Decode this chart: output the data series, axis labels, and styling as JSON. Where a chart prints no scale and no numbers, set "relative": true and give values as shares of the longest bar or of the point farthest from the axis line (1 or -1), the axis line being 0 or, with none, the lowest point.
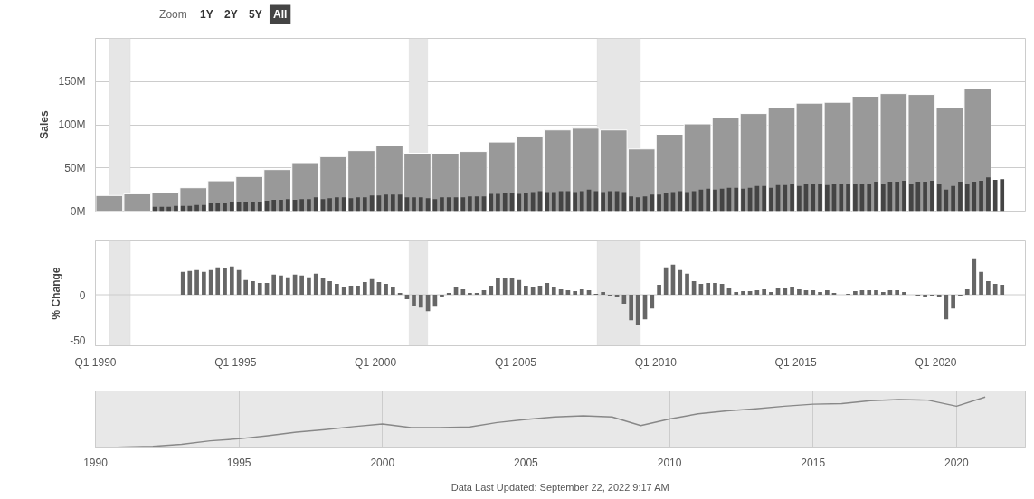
{
  "chart_data": [
    {
      "type": "bar",
      "ylabel": "Sales",
      "annotations": [
        "Zoom",
        "1Y",
        "2Y",
        "5Y",
        "All"
      ],
      "xlim": [
        "1990-01-01",
        "2023-03-15"
      ],
      "ylim": [
        0,
        200
      ],
      "yticks": [
        {
          "value": 0,
          "label": "0M"
        },
        {
          "value": 50,
          "label": "50M"
        },
        {
          "value": 100,
          "label": "100M"
        },
        {
          "value": 150,
          "label": "150M"
        }
      ],
      "grid": "y",
      "tick_labels": "y",
      "bands": [
        {
          "axis": "x",
          "from": "1990-07-01",
          "to": "1991-04-01",
          "color": "#e6e6e6"
        },
        {
          "axis": "x",
          "from": "2001-03-15",
          "to": "2001-11-10",
          "color": "#e6e6e6"
        },
        {
          "axis": "x",
          "from": "2007-12-01",
          "to": "2009-06-15",
          "color": "#e6e6e6"
        }
      ],
      "series": [
        {
          "color": "#999999",
          "x": [
            "1990-07-01",
            "1991-07-01",
            "1992-07-01",
            "1993-07-01",
            "1994-07-01",
            "1995-07-01",
            "1996-07-01",
            "1997-07-01",
            "1998-07-01",
            "1999-07-01",
            "2000-07-01",
            "2001-07-01",
            "2002-07-01",
            "2003-07-01",
            "2004-07-01",
            "2005-07-01",
            "2006-07-01",
            "2007-07-01",
            "2008-07-01",
            "2009-07-01",
            "2010-07-01",
            "2011-07-01",
            "2012-07-01",
            "2013-07-01",
            "2014-07-01",
            "2015-07-01",
            "2016-07-01",
            "2017-07-01",
            "2018-07-01",
            "2019-07-01",
            "2020-07-01",
            "2021-07-01"
          ],
          "values": [
            18,
            20,
            22,
            27,
            35,
            40,
            48,
            56,
            63,
            70,
            76,
            67,
            67,
            69,
            80,
            87,
            94,
            96,
            94,
            72,
            89,
            101,
            108,
            113,
            120,
            125,
            126,
            133,
            136,
            135,
            120,
            142
          ]
        },
        {
          "color": "#444444",
          "x": [
            "1992-02-15",
            "1992-05-15",
            "1992-08-15",
            "1992-11-15",
            "1993-02-15",
            "1993-05-15",
            "1993-08-15",
            "1993-11-15",
            "1994-02-15",
            "1994-05-15",
            "1994-08-15",
            "1994-11-15",
            "1995-02-15",
            "1995-05-15",
            "1995-08-15",
            "1995-11-15",
            "1996-02-15",
            "1996-05-15",
            "1996-08-15",
            "1996-11-15",
            "1997-02-15",
            "1997-05-15",
            "1997-08-15",
            "1997-11-15",
            "1998-02-15",
            "1998-05-15",
            "1998-08-15",
            "1998-11-15",
            "1999-02-15",
            "1999-05-15",
            "1999-08-15",
            "1999-11-15",
            "2000-02-15",
            "2000-05-15",
            "2000-08-15",
            "2000-11-15",
            "2001-02-15",
            "2001-05-15",
            "2001-08-15",
            "2001-11-15",
            "2002-02-15",
            "2002-05-15",
            "2002-08-15",
            "2002-11-15",
            "2003-02-15",
            "2003-05-15",
            "2003-08-15",
            "2003-11-15",
            "2004-02-15",
            "2004-05-15",
            "2004-08-15",
            "2004-11-15",
            "2005-02-15",
            "2005-05-15",
            "2005-08-15",
            "2005-11-15",
            "2006-02-15",
            "2006-05-15",
            "2006-08-15",
            "2006-11-15",
            "2007-02-15",
            "2007-05-15",
            "2007-08-15",
            "2007-11-15",
            "2008-02-15",
            "2008-05-15",
            "2008-08-15",
            "2008-11-15",
            "2009-02-15",
            "2009-05-15",
            "2009-08-15",
            "2009-11-15",
            "2010-02-15",
            "2010-05-15",
            "2010-08-15",
            "2010-11-15",
            "2011-02-15",
            "2011-05-15",
            "2011-08-15",
            "2011-11-15",
            "2012-02-15",
            "2012-05-15",
            "2012-08-15",
            "2012-11-15",
            "2013-02-15",
            "2013-05-15",
            "2013-08-15",
            "2013-11-15",
            "2014-02-15",
            "2014-05-15",
            "2014-08-15",
            "2014-11-15",
            "2015-02-15",
            "2015-05-15",
            "2015-08-15",
            "2015-11-15",
            "2016-02-15",
            "2016-05-15",
            "2016-08-15",
            "2016-11-15",
            "2017-02-15",
            "2017-05-15",
            "2017-08-15",
            "2017-11-15",
            "2018-02-15",
            "2018-05-15",
            "2018-08-15",
            "2018-11-15",
            "2019-02-15",
            "2019-05-15",
            "2019-08-15",
            "2019-11-15",
            "2020-02-15",
            "2020-05-15",
            "2020-08-15",
            "2020-11-15",
            "2021-02-15",
            "2021-05-15",
            "2021-08-15",
            "2021-11-15",
            "2022-02-15",
            "2022-05-15"
          ],
          "values": [
            5,
            5,
            5,
            6,
            6,
            6,
            7,
            7,
            9,
            9,
            9,
            10,
            10,
            10,
            10,
            11,
            12,
            13,
            13,
            14,
            13,
            14,
            14,
            16,
            14,
            15,
            16,
            16,
            15,
            16,
            16,
            18,
            18,
            19,
            19,
            19,
            16,
            16,
            16,
            15,
            14,
            16,
            16,
            16,
            16,
            17,
            17,
            17,
            20,
            20,
            21,
            21,
            20,
            21,
            22,
            23,
            22,
            22,
            23,
            23,
            22,
            23,
            25,
            23,
            22,
            23,
            23,
            22,
            17,
            16,
            17,
            19,
            19,
            21,
            22,
            23,
            22,
            23,
            25,
            26,
            25,
            26,
            27,
            27,
            26,
            27,
            29,
            29,
            27,
            30,
            30,
            31,
            29,
            31,
            31,
            32,
            30,
            31,
            31,
            32,
            31,
            32,
            32,
            34,
            32,
            34,
            34,
            35,
            32,
            34,
            34,
            35,
            31,
            25,
            29,
            34,
            32,
            34,
            35,
            39,
            36,
            37
          ]
        }
      ]
    },
    {
      "type": "bar",
      "ylabel": "% Change",
      "xlim": [
        "1990-01-01",
        "2023-03-15"
      ],
      "xticks": [
        {
          "value": "1990-01-01",
          "label": "Q1 1990"
        },
        {
          "value": "1995-01-01",
          "label": "Q1 1995"
        },
        {
          "value": "2000-01-01",
          "label": "Q1 2000"
        },
        {
          "value": "2005-01-01",
          "label": "Q1 2005"
        },
        {
          "value": "2010-01-01",
          "label": "Q1 2010"
        },
        {
          "value": "2015-01-01",
          "label": "Q1 2015"
        },
        {
          "value": "2020-01-01",
          "label": "Q1 2020"
        }
      ],
      "ylim": [
        -56,
        59
      ],
      "yticks": [
        -50,
        0
      ],
      "grid": false,
      "ref_lines": [
        {
          "axis": "y",
          "value": 0,
          "color": "#cccccc"
        }
      ],
      "bands": [
        {
          "axis": "x",
          "from": "1990-07-01",
          "to": "1991-04-01",
          "color": "#e6e6e6"
        },
        {
          "axis": "x",
          "from": "2001-03-15",
          "to": "2001-11-10",
          "color": "#e6e6e6"
        },
        {
          "axis": "x",
          "from": "2007-12-01",
          "to": "2009-06-15",
          "color": "#e6e6e6"
        }
      ],
      "series": [
        {
          "color": "#666666",
          "x": [
            "1993-02-15",
            "1993-05-15",
            "1993-08-15",
            "1993-11-15",
            "1994-02-15",
            "1994-05-15",
            "1994-08-15",
            "1994-11-15",
            "1995-02-15",
            "1995-05-15",
            "1995-08-15",
            "1995-11-15",
            "1996-02-15",
            "1996-05-15",
            "1996-08-15",
            "1996-11-15",
            "1997-02-15",
            "1997-05-15",
            "1997-08-15",
            "1997-11-15",
            "1998-02-15",
            "1998-05-15",
            "1998-08-15",
            "1998-11-15",
            "1999-02-15",
            "1999-05-15",
            "1999-08-15",
            "1999-11-15",
            "2000-02-15",
            "2000-05-15",
            "2000-08-15",
            "2000-11-15",
            "2001-02-15",
            "2001-05-15",
            "2001-08-15",
            "2001-11-15",
            "2002-02-15",
            "2002-05-15",
            "2002-08-15",
            "2002-11-15",
            "2003-02-15",
            "2003-05-15",
            "2003-08-15",
            "2003-11-15",
            "2004-02-15",
            "2004-05-15",
            "2004-08-15",
            "2004-11-15",
            "2005-02-15",
            "2005-05-15",
            "2005-08-15",
            "2005-11-15",
            "2006-02-15",
            "2006-05-15",
            "2006-08-15",
            "2006-11-15",
            "2007-02-15",
            "2007-05-15",
            "2007-08-15",
            "2007-11-15",
            "2008-02-15",
            "2008-05-15",
            "2008-08-15",
            "2008-11-15",
            "2009-02-15",
            "2009-05-15",
            "2009-08-15",
            "2009-11-15",
            "2010-02-15",
            "2010-05-15",
            "2010-08-15",
            "2010-11-15",
            "2011-02-15",
            "2011-05-15",
            "2011-08-15",
            "2011-11-15",
            "2012-02-15",
            "2012-05-15",
            "2012-08-15",
            "2012-11-15",
            "2013-02-15",
            "2013-05-15",
            "2013-08-15",
            "2013-11-15",
            "2014-02-15",
            "2014-05-15",
            "2014-08-15",
            "2014-11-15",
            "2015-02-15",
            "2015-05-15",
            "2015-08-15",
            "2015-11-15",
            "2016-02-15",
            "2016-05-15",
            "2016-08-15",
            "2016-11-15",
            "2017-02-15",
            "2017-05-15",
            "2017-08-15",
            "2017-11-15",
            "2018-02-15",
            "2018-05-15",
            "2018-08-15",
            "2018-11-15",
            "2019-02-15",
            "2019-05-15",
            "2019-08-15",
            "2019-11-15",
            "2020-02-15",
            "2020-05-15",
            "2020-08-15",
            "2020-11-15",
            "2021-02-15",
            "2021-05-15",
            "2021-08-15",
            "2021-11-15",
            "2022-02-15",
            "2022-05-15"
          ],
          "values": [
            25,
            26,
            27,
            25,
            27,
            30,
            29,
            31,
            27,
            16,
            15,
            13,
            13,
            22,
            21,
            19,
            22,
            21,
            19,
            23,
            18,
            15,
            12,
            8,
            10,
            10,
            14,
            17,
            14,
            12,
            9,
            2,
            -5,
            -12,
            -14,
            -18,
            -13,
            -3,
            2,
            8,
            6,
            2,
            2,
            5,
            10,
            18,
            18,
            18,
            16,
            10,
            9,
            10,
            13,
            8,
            6,
            5,
            4,
            6,
            5,
            1,
            3,
            -1,
            -3,
            -10,
            -28,
            -33,
            -27,
            -15,
            11,
            30,
            33,
            27,
            23,
            15,
            12,
            13,
            13,
            12,
            7,
            3,
            4,
            4,
            5,
            6,
            3,
            7,
            7,
            9,
            6,
            5,
            5,
            3,
            5,
            2,
            0,
            1,
            4,
            5,
            5,
            5,
            3,
            5,
            5,
            3,
            0,
            -1,
            -2,
            -1,
            -2,
            -27,
            -15,
            -1,
            6,
            40,
            25,
            15,
            12,
            11
          ]
        }
      ]
    },
    {
      "type": "line",
      "relative": true,
      "annotations": [
        "Data Last Updated: September 22, 2022 9:17 AM"
      ],
      "xlim": [
        1990,
        2022.4
      ],
      "xticks": [
        1990,
        1995,
        2000,
        2005,
        2010,
        2015,
        2020
      ],
      "grid": "x",
      "tick_labels": "x",
      "series": [
        {
          "color": "#888888",
          "x": [
            1990,
            1991,
            1992,
            1993,
            1994,
            1995,
            1996,
            1997,
            1998,
            1999,
            2000,
            2001,
            2002,
            2003,
            2004,
            2005,
            2006,
            2007,
            2008,
            2009,
            2010,
            2011,
            2012,
            2013,
            2014,
            2015,
            2016,
            2017,
            2018,
            2019,
            2020,
            2021
          ],
          "values": [
            0,
            0.02,
            0.03,
            0.07,
            0.14,
            0.18,
            0.24,
            0.31,
            0.36,
            0.42,
            0.47,
            0.4,
            0.4,
            0.41,
            0.5,
            0.56,
            0.61,
            0.63,
            0.61,
            0.44,
            0.57,
            0.67,
            0.73,
            0.77,
            0.82,
            0.86,
            0.87,
            0.93,
            0.95,
            0.94,
            0.82,
            1.0
          ]
        }
      ]
    }
  ]
}
